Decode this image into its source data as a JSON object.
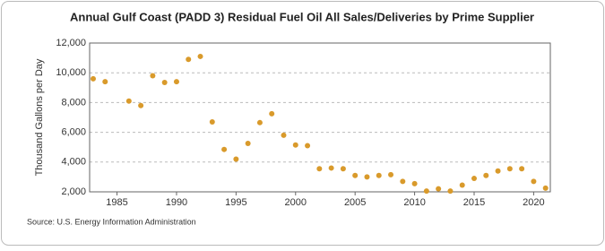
{
  "chart_data": {
    "type": "scatter",
    "title": "Annual Gulf Coast (PADD 3) Residual Fuel Oil All Sales/Deliveries by Prime Supplier",
    "y_label": "Thousand Gallons per Day",
    "source": "Source: U.S. Energy Information Administration",
    "x": [
      1983,
      1984,
      1986,
      1987,
      1988,
      1989,
      1990,
      1991,
      1992,
      1993,
      1994,
      1995,
      1996,
      1997,
      1998,
      1999,
      2000,
      2001,
      2002,
      2003,
      2004,
      2005,
      2006,
      2007,
      2008,
      2009,
      2010,
      2011,
      2012,
      2013,
      2014,
      2015,
      2016,
      2017,
      2018,
      2019,
      2020,
      2021
    ],
    "values": [
      9600,
      9400,
      8100,
      7800,
      9800,
      9350,
      9400,
      10900,
      11100,
      6700,
      4850,
      4200,
      5250,
      6650,
      7250,
      5800,
      5150,
      5100,
      3550,
      3600,
      3550,
      3100,
      3000,
      3100,
      3150,
      2700,
      2550,
      2050,
      2200,
      2050,
      2450,
      2900,
      3100,
      3400,
      3550,
      3550,
      2700,
      2250
    ],
    "color": "#d99a2b",
    "xlim": [
      1982.7,
      2021.4
    ],
    "xticks": [
      1985,
      1990,
      1995,
      2000,
      2005,
      2010,
      2015,
      2020
    ],
    "ylim": [
      2000,
      12000
    ],
    "yticks": [
      {
        "value": 2000,
        "label": "2,000"
      },
      {
        "value": 4000,
        "label": "4,000"
      },
      {
        "value": 6000,
        "label": "6,000"
      },
      {
        "value": 8000,
        "label": "8,000"
      },
      {
        "value": 10000,
        "label": "10,000"
      },
      {
        "value": 12000,
        "label": "12,000"
      }
    ],
    "grid": true
  }
}
